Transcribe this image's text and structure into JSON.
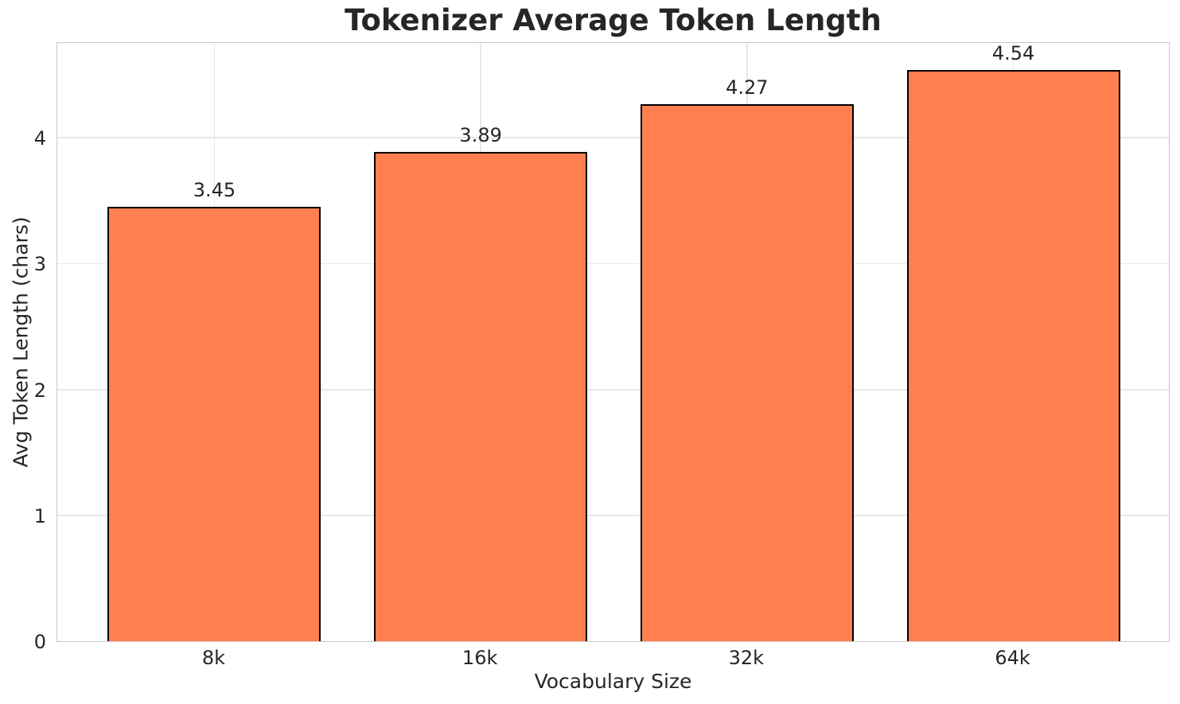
{
  "chart_data": {
    "type": "bar",
    "title": "Tokenizer Average Token Length",
    "xlabel": "Vocabulary Size",
    "ylabel": "Avg Token Length (chars)",
    "categories": [
      "8k",
      "16k",
      "32k",
      "64k"
    ],
    "values": [
      3.45,
      3.89,
      4.27,
      4.54
    ],
    "value_labels": [
      "3.45",
      "3.89",
      "4.27",
      "4.54"
    ],
    "yticks": [
      0,
      1,
      2,
      3,
      4
    ],
    "ytick_labels": [
      "0",
      "1",
      "2",
      "3",
      "4"
    ],
    "ylim": [
      0,
      4.767
    ],
    "grid": true,
    "legend": false,
    "colors": {
      "bar_fill": "#FF7F50",
      "bar_edge": "#000000",
      "gridline": "#e7e7e7",
      "spine": "#c9c9c9",
      "text": "#262626",
      "background": "#ffffff"
    }
  }
}
